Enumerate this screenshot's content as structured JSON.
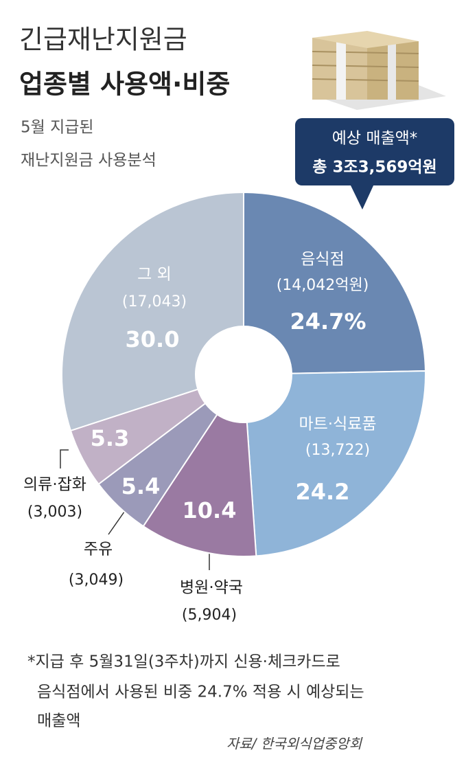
{
  "title_lines": [
    "긴급재난지원금",
    "업종별 사용액·비중"
  ],
  "subtitle_lines": [
    "5월 지급된",
    "재난지원금 사용분석"
  ],
  "callout_lines": [
    "예상 매출액*",
    "총 3조3,569억원"
  ],
  "chart_data": {
    "type": "pie",
    "categories": [
      "음식점",
      "마트·식료품",
      "병원·약국",
      "주유",
      "의류·잡화",
      "그 외"
    ],
    "amount_labels": [
      "(14,042억원)",
      "(13,722)",
      "(5,904)",
      "(3,049)",
      "(3,003)",
      "(17,043)"
    ],
    "values": [
      24.7,
      24.2,
      10.4,
      5.4,
      5.3,
      30.0
    ],
    "value_labels": [
      "24.7%",
      "24.2",
      "10.4",
      "5.4",
      "5.3",
      "30.0"
    ],
    "colors": [
      "#6a88b2",
      "#8fb4d8",
      "#9a7aa2",
      "#9b9ab9",
      "#c1b1c6",
      "#bac5d3"
    ]
  },
  "footnote_lines": [
    "*지급 후 5월31일(3주차)까지 신용·체크카드로",
    "음식점에서 사용된 비중 24.7% 적용 시 예상되는",
    "매출액"
  ],
  "source": "자료/ 한국외식업중앙회"
}
